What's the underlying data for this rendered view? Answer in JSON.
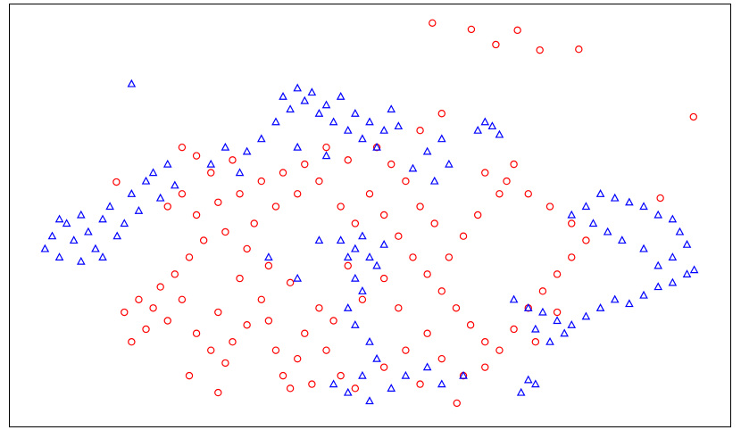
{
  "chart_data": {
    "type": "scatter",
    "xlim": [
      0,
      100
    ],
    "ylim": [
      0,
      100
    ],
    "series": [
      {
        "color": "#ff0000",
        "marker": "circle",
        "x": [
          58.7,
          64.1,
          67.5,
          70.5,
          73.6,
          79.0,
          94.9,
          14.9,
          62.1,
          90.3,
          20,
          22,
          24,
          26,
          28,
          30,
          31,
          29,
          33,
          35,
          37,
          38,
          40,
          42,
          41,
          43,
          39,
          36,
          33,
          30,
          27,
          25,
          23,
          21,
          18,
          16,
          17,
          19,
          32,
          34,
          37,
          40,
          43,
          46,
          48,
          50,
          52,
          54,
          56,
          58,
          60,
          62,
          64,
          66,
          68,
          70,
          72,
          74,
          76,
          78,
          80,
          78,
          75,
          72,
          69,
          66,
          70,
          68,
          65,
          63,
          61,
          59,
          57,
          55,
          53,
          51,
          47,
          44,
          41,
          38,
          35,
          32,
          29,
          26,
          24,
          22,
          28,
          31,
          47,
          49,
          45,
          44,
          46,
          48,
          52,
          55,
          58,
          60,
          57,
          63,
          66,
          73,
          76,
          54,
          52,
          36,
          25,
          29,
          39,
          60,
          57,
          26,
          24
        ],
        "y": [
          95.4,
          93.9,
          90.3,
          93.7,
          89.0,
          89.2,
          73.2,
          57.8,
          5.5,
          54.0,
          28,
          25,
          30,
          22,
          18,
          15,
          20,
          27,
          24,
          30,
          18,
          12,
          16,
          10,
          22,
          28,
          34,
          38,
          42,
          46,
          44,
          40,
          36,
          33,
          30,
          27,
          20,
          23,
          35,
          48,
          52,
          55,
          58,
          52,
          48,
          55,
          50,
          45,
          40,
          36,
          32,
          28,
          24,
          20,
          18,
          23,
          28,
          32,
          36,
          40,
          44,
          48,
          52,
          55,
          58,
          60,
          62,
          55,
          50,
          45,
          40,
          48,
          52,
          58,
          62,
          66,
          63,
          66,
          62,
          60,
          58,
          55,
          53,
          50,
          55,
          52,
          60,
          63,
          38,
          30,
          25,
          18,
          12,
          9,
          14,
          18,
          22,
          16,
          10,
          12,
          14,
          20,
          27,
          28,
          35,
          25,
          12,
          8,
          9,
          74,
          70,
          64,
          66
        ]
      },
      {
        "color": "#0000ff",
        "marker": "triangle",
        "x": [
          5,
          6,
          7,
          8,
          9,
          10,
          11,
          12,
          13,
          14,
          15,
          16,
          17,
          18,
          19,
          20,
          21,
          22,
          23,
          7,
          10,
          13,
          17,
          38,
          39,
          40,
          41,
          42,
          43,
          44,
          45,
          46,
          47,
          48,
          49,
          50,
          51,
          52,
          53,
          54,
          37,
          35,
          33,
          30,
          28,
          32,
          44,
          40,
          58,
          60,
          61,
          65,
          66,
          67,
          68,
          59,
          56,
          46,
          47,
          48,
          49,
          50,
          51,
          48,
          49,
          47,
          48,
          50,
          51,
          49,
          47,
          50,
          45,
          53,
          55,
          43,
          52,
          82,
          84,
          86,
          88,
          90,
          92,
          93,
          94,
          92,
          90,
          88,
          85,
          83,
          81,
          80,
          78,
          70,
          72,
          74,
          76,
          78,
          80,
          82,
          84,
          86,
          88,
          90,
          92,
          94,
          95,
          77,
          75,
          73,
          71,
          72,
          73,
          60,
          58,
          63,
          40,
          36
        ],
        "y": [
          42,
          45,
          40,
          48,
          44,
          50,
          46,
          42,
          49,
          52,
          45,
          48,
          55,
          51,
          58,
          60,
          54,
          62,
          57,
          49,
          39,
          40,
          81,
          78,
          75,
          80,
          77,
          79,
          74,
          76,
          72,
          78,
          70,
          74,
          68,
          72,
          66,
          70,
          75,
          71,
          72,
          68,
          65,
          66,
          62,
          60,
          64,
          66,
          65,
          68,
          62,
          70,
          72,
          71,
          69,
          58,
          61,
          44,
          40,
          42,
          45,
          40,
          38,
          35,
          32,
          28,
          24,
          20,
          16,
          12,
          8,
          6,
          10,
          9,
          12,
          44,
          43,
          55,
          54,
          53,
          52,
          50,
          49,
          46,
          43,
          40,
          38,
          42,
          44,
          46,
          48,
          52,
          50,
          30,
          28,
          27,
          25,
          24,
          26,
          28,
          30,
          29,
          31,
          33,
          34,
          36,
          37,
          22,
          20,
          23,
          8,
          11,
          10,
          10,
          14,
          12,
          35,
          40
        ]
      }
    ]
  }
}
